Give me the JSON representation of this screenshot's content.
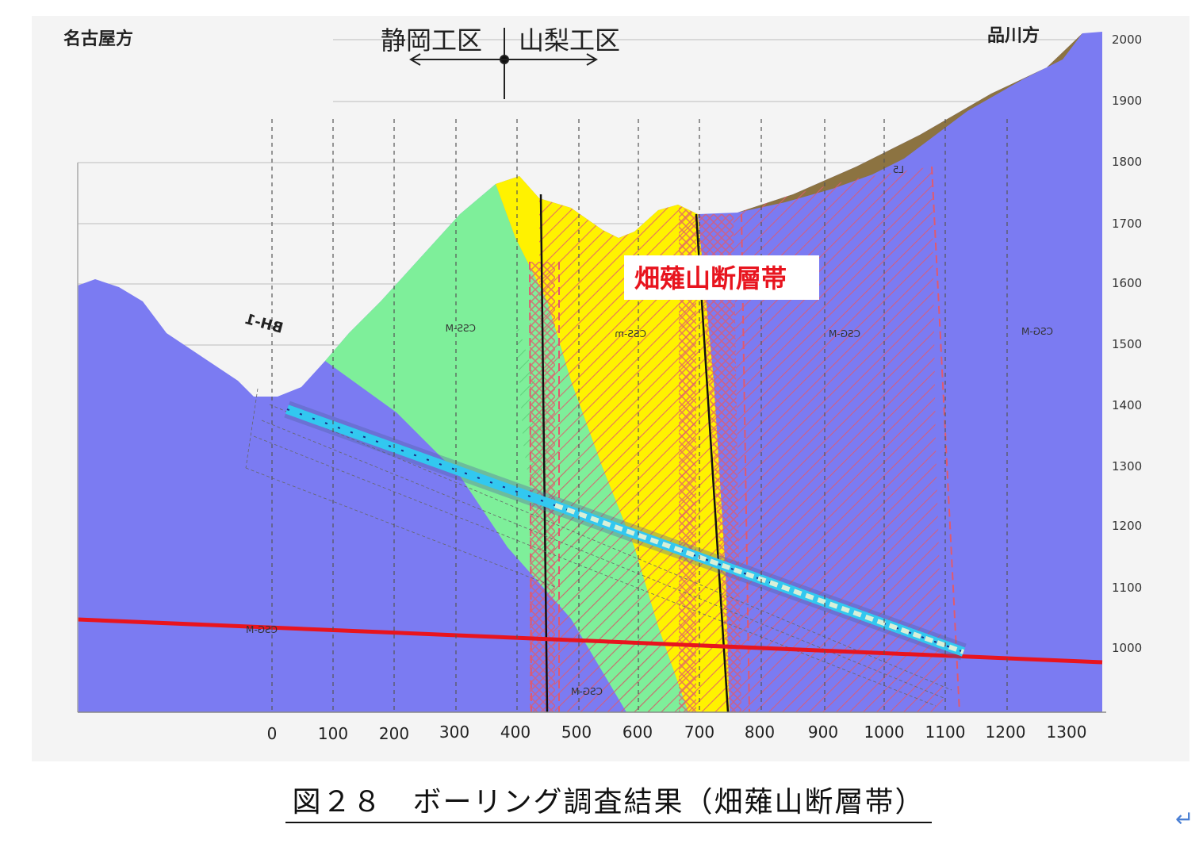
{
  "header": {
    "left_direction": "名古屋方",
    "right_direction": "品川方",
    "section_left": "静岡工区",
    "section_right": "山梨工区"
  },
  "fault_label": "畑薙山断層帯",
  "borehole_label": "BH-1",
  "y_axis_ticks": [
    "2000",
    "1900",
    "1800",
    "1700",
    "1600",
    "1500",
    "1400",
    "1300",
    "1200",
    "1100",
    "1000"
  ],
  "x_axis_ticks": [
    "0",
    "100",
    "200",
    "300",
    "400",
    "500",
    "600",
    "700",
    "800",
    "900",
    "1000",
    "1100",
    "1200",
    "1300"
  ],
  "rock_units": {
    "green": "CSS-M",
    "yellow": "CSS-m",
    "purple": "CSG-M",
    "right": "CSG-M",
    "lower_left": "CSG-M",
    "lower_mid": "CSG-M",
    "top_right": "L5"
  },
  "caption": "図２８　ボーリング調査結果（畑薙山断層帯）",
  "return_symbol": "↵",
  "colors": {
    "rock_blue": "#7b7bf2",
    "green_zone": "#7eef9a",
    "yellow_zone": "#fff200",
    "talus": "#8c7341",
    "fault_hatch": "#e05a6e",
    "red_line": "#e8141e",
    "borehole": "#32c8f0",
    "fault_text": "#e8141e"
  }
}
